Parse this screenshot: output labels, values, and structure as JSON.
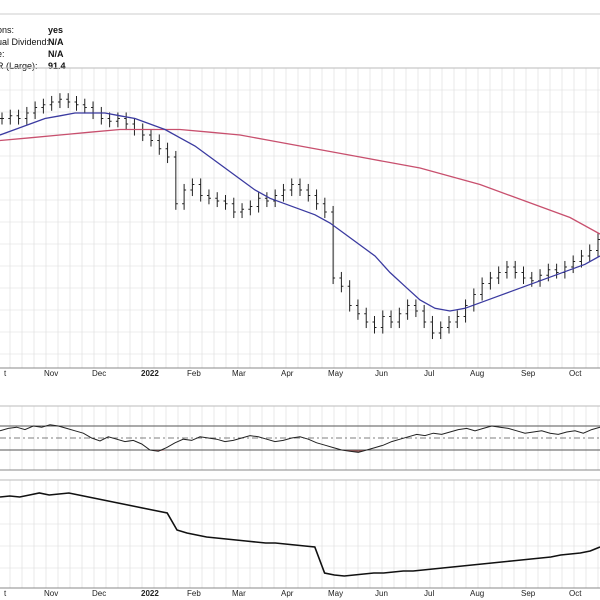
{
  "chart_data": {
    "type": "line",
    "info_panel": [
      {
        "label": "ons:",
        "value": "yes"
      },
      {
        "label": "ual Dividend:",
        "value": "N/A"
      },
      {
        "label": "e:",
        "value": "N/A"
      },
      {
        "label": "R (Large):",
        "value": "91.4"
      }
    ],
    "x_labels": [
      "t",
      "Nov",
      "Dec",
      "2022",
      "Feb",
      "Mar",
      "Apr",
      "May",
      "Jun",
      "Jul",
      "Aug",
      "Sep",
      "Oct"
    ],
    "grid": true,
    "price": {
      "type": "ohlc",
      "ylim": [
        0,
        100
      ],
      "close": [
        86,
        87,
        86,
        88,
        90,
        91,
        92,
        93,
        92,
        91,
        90,
        88,
        86,
        85,
        86,
        84,
        82,
        80,
        78,
        75,
        72,
        55,
        60,
        62,
        58,
        57,
        56,
        55,
        52,
        53,
        54,
        57,
        56,
        58,
        60,
        62,
        60,
        58,
        55,
        52,
        28,
        25,
        18,
        15,
        12,
        10,
        14,
        12,
        15,
        18,
        16,
        12,
        8,
        10,
        12,
        14,
        18,
        22,
        26,
        28,
        30,
        32,
        30,
        28,
        27,
        29,
        31,
        30,
        32,
        34,
        36,
        38,
        42
      ],
      "ma50": [
        80,
        82,
        84,
        86,
        87,
        88,
        88,
        88,
        87,
        86,
        84,
        82,
        79,
        76,
        72,
        68,
        64,
        60,
        57,
        55,
        53,
        51,
        48,
        44,
        40,
        36,
        30,
        25,
        20,
        17,
        16,
        17,
        19,
        21,
        23,
        25,
        27,
        29,
        31,
        33,
        36
      ],
      "ma200": [
        78,
        79,
        80,
        81,
        82,
        82,
        82,
        81,
        80,
        78,
        76,
        74,
        72,
        70,
        68,
        65,
        62,
        58,
        54,
        50,
        44
      ]
    },
    "indicator": {
      "type": "line",
      "ylim": [
        0,
        100
      ],
      "reference_lines": [
        70,
        50,
        30
      ],
      "values": [
        62,
        66,
        68,
        64,
        70,
        68,
        72,
        70,
        66,
        62,
        58,
        50,
        45,
        52,
        48,
        44,
        46,
        40,
        30,
        28,
        34,
        42,
        48,
        46,
        52,
        50,
        48,
        44,
        46,
        50,
        54,
        52,
        48,
        44,
        46,
        50,
        52,
        48,
        42,
        38,
        34,
        30,
        28,
        26,
        30,
        34,
        38,
        44,
        48,
        52,
        56,
        54,
        58,
        56,
        60,
        64,
        66,
        62,
        66,
        70,
        68,
        66,
        62,
        58,
        60,
        62,
        58,
        56,
        60,
        62,
        58,
        64,
        68
      ]
    },
    "relative": {
      "type": "line",
      "ylim": [
        0,
        100
      ],
      "values": [
        88,
        89,
        88,
        90,
        92,
        90,
        91,
        92,
        90,
        88,
        86,
        84,
        82,
        80,
        78,
        76,
        74,
        72,
        55,
        52,
        50,
        48,
        47,
        46,
        45,
        44,
        43,
        42,
        42,
        41,
        40,
        39,
        38,
        12,
        10,
        9,
        10,
        11,
        12,
        12,
        13,
        14,
        14,
        15,
        16,
        17,
        18,
        19,
        20,
        21,
        22,
        23,
        24,
        25,
        26,
        27,
        28,
        30,
        31,
        32,
        34,
        38
      ]
    }
  }
}
